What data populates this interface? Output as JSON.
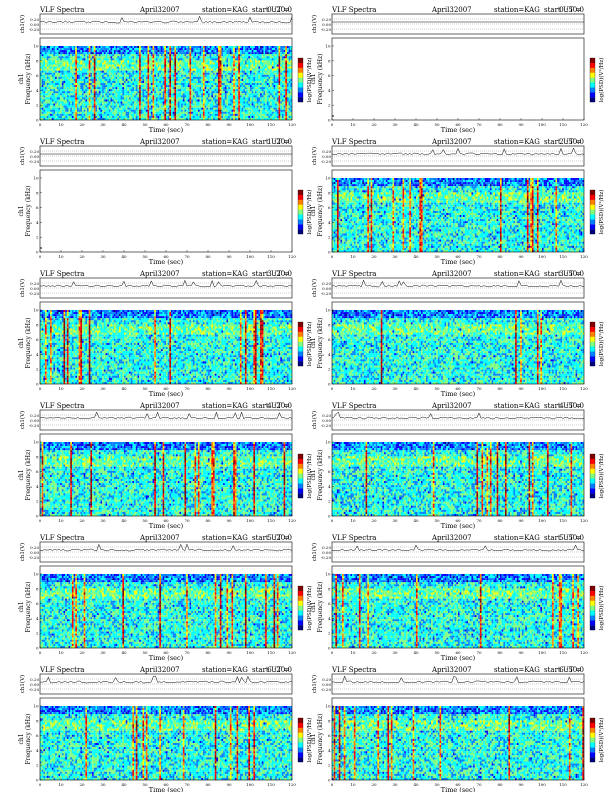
{
  "page": {
    "header_left": "VLF Spectra",
    "header_date": "April32007",
    "header_station": "station=KAG",
    "header_start_prefix": "start UT ="
  },
  "axis": {
    "ch_label": "ch1(V)",
    "freq_label": "Frequency (kHz)",
    "side_label": "ch1",
    "time_label": "Time (sec)",
    "colorbar_label": "log(PSD)(V²/Hz)",
    "ch_ticks": [
      "0.20",
      "0.00",
      "-0.20"
    ],
    "freq_ticks": [
      "0",
      "2",
      "4",
      "6",
      "8",
      "10"
    ],
    "time_ticks": [
      "0",
      "10",
      "20",
      "30",
      "40",
      "50",
      "60",
      "70",
      "80",
      "90",
      "100",
      "110",
      "120"
    ]
  },
  "colors": {
    "colormap": [
      "#000080",
      "#0000ff",
      "#0080ff",
      "#00ffff",
      "#80ff80",
      "#ffff00",
      "#ff8000",
      "#ff0000",
      "#800000"
    ],
    "background": "#ffffff"
  },
  "chart_data": [
    {
      "type": "heatmap",
      "title_time": "0 :20:0",
      "has_data": true,
      "activity": 0.85,
      "seed": 11,
      "x_range": [
        0,
        120
      ],
      "y_range": [
        0,
        10
      ],
      "xlabel": "Time (sec)",
      "ylabel": "Frequency (kHz)",
      "colorbar": "log(PSD)(V²/Hz)"
    },
    {
      "type": "heatmap",
      "title_time": "0 :50:0",
      "has_data": false,
      "activity": 0.0,
      "seed": 12,
      "x_range": [
        0,
        120
      ],
      "y_range": [
        0,
        10
      ],
      "xlabel": "Time (sec)",
      "ylabel": "Frequency (kHz)",
      "colorbar": "log(PSD)(V²/Hz)"
    },
    {
      "type": "heatmap",
      "title_time": "1 :20:0",
      "has_data": false,
      "activity": 0.0,
      "seed": 13,
      "x_range": [
        0,
        120
      ],
      "y_range": [
        0,
        10
      ],
      "xlabel": "Time (sec)",
      "ylabel": "Frequency (kHz)",
      "colorbar": "log(PSD)(V²/Hz)"
    },
    {
      "type": "heatmap",
      "title_time": "2 :50:0",
      "has_data": true,
      "activity": 0.75,
      "seed": 14,
      "x_range": [
        0,
        120
      ],
      "y_range": [
        0,
        10
      ],
      "xlabel": "Time (sec)",
      "ylabel": "Frequency (kHz)",
      "colorbar": "log(PSD)(V²/Hz)"
    },
    {
      "type": "heatmap",
      "title_time": "3 :20:0",
      "has_data": true,
      "activity": 0.5,
      "seed": 15,
      "x_range": [
        0,
        120
      ],
      "y_range": [
        0,
        10
      ],
      "xlabel": "Time (sec)",
      "ylabel": "Frequency (kHz)",
      "colorbar": "log(PSD)(V²/Hz)"
    },
    {
      "type": "heatmap",
      "title_time": "3 :50:0",
      "has_data": true,
      "activity": 0.55,
      "seed": 16,
      "x_range": [
        0,
        120
      ],
      "y_range": [
        0,
        10
      ],
      "xlabel": "Time (sec)",
      "ylabel": "Frequency (kHz)",
      "colorbar": "log(PSD)(V²/Hz)"
    },
    {
      "type": "heatmap",
      "title_time": "4 :20:0",
      "has_data": true,
      "activity": 0.65,
      "seed": 17,
      "x_range": [
        0,
        120
      ],
      "y_range": [
        0,
        10
      ],
      "xlabel": "Time (sec)",
      "ylabel": "Frequency (kHz)",
      "colorbar": "log(PSD)(V²/Hz)"
    },
    {
      "type": "heatmap",
      "title_time": "4 :50:0",
      "has_data": true,
      "activity": 0.6,
      "seed": 18,
      "x_range": [
        0,
        120
      ],
      "y_range": [
        0,
        10
      ],
      "xlabel": "Time (sec)",
      "ylabel": "Frequency (kHz)",
      "colorbar": "log(PSD)(V²/Hz)"
    },
    {
      "type": "heatmap",
      "title_time": "5 :20:0",
      "has_data": true,
      "activity": 0.7,
      "seed": 19,
      "x_range": [
        0,
        120
      ],
      "y_range": [
        0,
        10
      ],
      "xlabel": "Time (sec)",
      "ylabel": "Frequency (kHz)",
      "colorbar": "log(PSD)(V²/Hz)"
    },
    {
      "type": "heatmap",
      "title_time": "5 :50:0",
      "has_data": true,
      "activity": 0.5,
      "seed": 20,
      "x_range": [
        0,
        120
      ],
      "y_range": [
        0,
        10
      ],
      "xlabel": "Time (sec)",
      "ylabel": "Frequency (kHz)",
      "colorbar": "log(PSD)(V²/Hz)"
    },
    {
      "type": "heatmap",
      "title_time": "6 :20:0",
      "has_data": true,
      "activity": 0.55,
      "seed": 21,
      "x_range": [
        0,
        120
      ],
      "y_range": [
        0,
        10
      ],
      "xlabel": "Time (sec)",
      "ylabel": "Frequency (kHz)",
      "colorbar": "log(PSD)(V²/Hz)"
    },
    {
      "type": "heatmap",
      "title_time": "6 :50:0",
      "has_data": true,
      "activity": 0.55,
      "seed": 22,
      "x_range": [
        0,
        120
      ],
      "y_range": [
        0,
        10
      ],
      "xlabel": "Time (sec)",
      "ylabel": "Frequency (kHz)",
      "colorbar": "log(PSD)(V²/Hz)"
    }
  ]
}
